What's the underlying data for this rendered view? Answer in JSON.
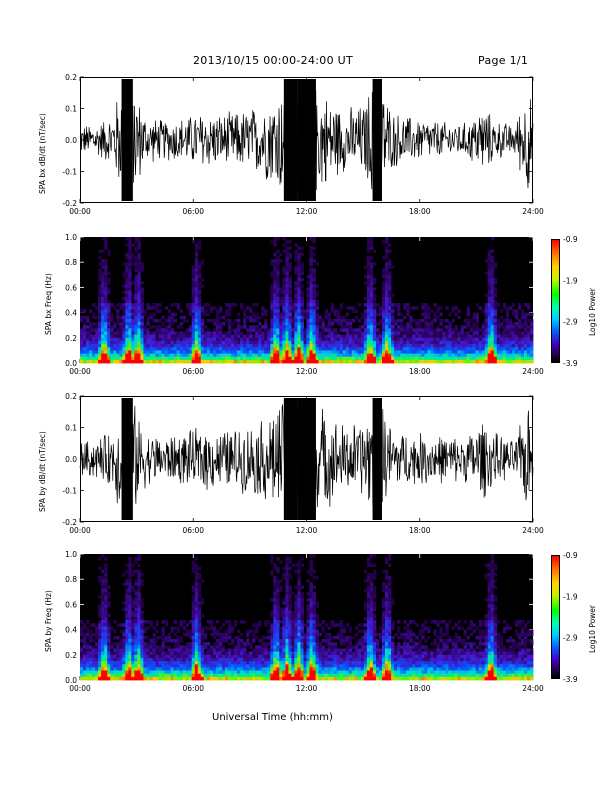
{
  "header": {
    "title": "2013/10/15   00:00-24:00 UT",
    "page": "Page 1/1"
  },
  "footer": {
    "xlabel": "Universal Time (hh:mm)"
  },
  "colors": {
    "waveform": "#000000",
    "spectrogram_bg": "#000000"
  },
  "chart_data": [
    {
      "type": "line",
      "ylabel": "SPA bx dB/dt (nT/sec)",
      "ylim": [
        -0.2,
        0.2
      ],
      "yticks": [
        "0.2",
        "0.1",
        "0.0",
        "-0.1",
        "-0.2"
      ],
      "xticks": [
        "00:00",
        "06:00",
        "12:00",
        "18:00",
        "24:00"
      ],
      "xlim_hours": [
        0,
        24
      ],
      "envelope": {
        "hours": [
          0,
          1,
          1.7,
          2.2,
          2.8,
          3.5,
          4.5,
          5.5,
          6.5,
          7.5,
          8.5,
          9.5,
          10.3,
          10.8,
          11.5,
          12.5,
          13.3,
          14,
          15,
          15.5,
          16,
          16.5,
          17.5,
          18.5,
          19.5,
          20.5,
          21.3,
          22,
          23,
          23.8,
          24
        ],
        "amplitude": [
          0.05,
          0.06,
          0.09,
          0.2,
          0.2,
          0.08,
          0.07,
          0.08,
          0.1,
          0.09,
          0.1,
          0.12,
          0.16,
          0.2,
          0.2,
          0.2,
          0.14,
          0.11,
          0.12,
          0.2,
          0.2,
          0.1,
          0.08,
          0.07,
          0.06,
          0.06,
          0.12,
          0.07,
          0.05,
          0.2,
          0.06
        ]
      }
    },
    {
      "type": "heatmap",
      "ylabel": "SPA bx Freq (Hz)",
      "ylim": [
        0.0,
        1.0
      ],
      "yticks": [
        "1.0",
        "0.8",
        "0.6",
        "0.4",
        "0.2",
        "0.0"
      ],
      "xticks": [
        "00:00",
        "06:00",
        "12:00",
        "18:00",
        "24:00"
      ],
      "colorbar": {
        "label": "Log10 Power",
        "ticks": [
          "-0.9",
          "-1.9",
          "-2.9",
          "-3.9"
        ],
        "range": [
          -3.9,
          -0.9
        ]
      },
      "bursts_hours": [
        1.2,
        2.5,
        3.0,
        6.1,
        10.3,
        10.9,
        11.5,
        12.2,
        15.3,
        16.2,
        21.7
      ]
    },
    {
      "type": "line",
      "ylabel": "SPA by dB/dt (nT/sec)",
      "ylim": [
        -0.2,
        0.2
      ],
      "yticks": [
        "0.2",
        "0.1",
        "0.0",
        "-0.1",
        "-0.2"
      ],
      "xticks": [
        "00:00",
        "06:00",
        "12:00",
        "18:00",
        "24:00"
      ],
      "xlim_hours": [
        0,
        24
      ],
      "envelope": {
        "hours": [
          0,
          1,
          1.7,
          2.2,
          2.8,
          3.5,
          4.5,
          5.5,
          6.5,
          7.5,
          8.5,
          9.5,
          10.3,
          10.8,
          11.5,
          12.5,
          13.3,
          14,
          15,
          15.5,
          16,
          16.5,
          17.5,
          18.5,
          19.5,
          20.5,
          21.3,
          22,
          23,
          23.8,
          24
        ],
        "amplitude": [
          0.06,
          0.07,
          0.1,
          0.2,
          0.2,
          0.09,
          0.08,
          0.09,
          0.11,
          0.1,
          0.11,
          0.13,
          0.18,
          0.2,
          0.2,
          0.2,
          0.15,
          0.12,
          0.13,
          0.2,
          0.2,
          0.11,
          0.09,
          0.09,
          0.08,
          0.08,
          0.14,
          0.09,
          0.06,
          0.2,
          0.07
        ]
      }
    },
    {
      "type": "heatmap",
      "ylabel": "SPA by Freq (Hz)",
      "ylim": [
        0.0,
        1.0
      ],
      "yticks": [
        "1.0",
        "0.8",
        "0.6",
        "0.4",
        "0.2",
        "0.0"
      ],
      "xticks": [
        "00:00",
        "06:00",
        "12:00",
        "18:00",
        "24:00"
      ],
      "colorbar": {
        "label": "Log10 Power",
        "ticks": [
          "-0.9",
          "-1.9",
          "-2.9",
          "-3.9"
        ],
        "range": [
          -3.9,
          -0.9
        ]
      },
      "bursts_hours": [
        1.2,
        2.5,
        3.0,
        6.1,
        10.3,
        10.9,
        11.5,
        12.2,
        15.3,
        16.2,
        21.7
      ]
    }
  ]
}
